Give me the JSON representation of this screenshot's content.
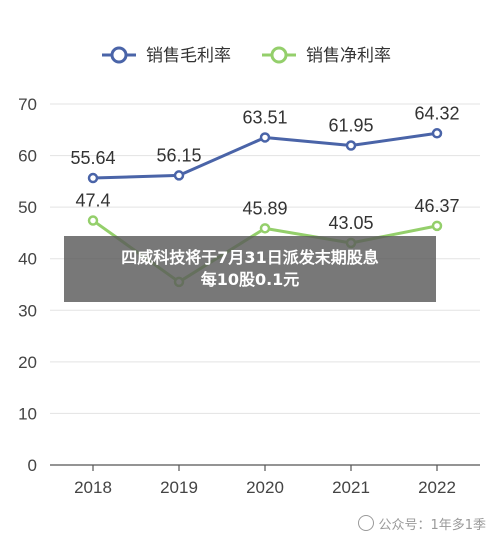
{
  "chart_data": {
    "type": "line",
    "categories": [
      "2018",
      "2019",
      "2020",
      "2021",
      "2022"
    ],
    "series": [
      {
        "name": "销售毛利率",
        "values": [
          55.64,
          56.15,
          63.51,
          61.95,
          64.32
        ],
        "color": "#4a64a8",
        "labels": [
          "55.64",
          "56.15",
          "63.51",
          "61.95",
          "64.32"
        ]
      },
      {
        "name": "销售净利率",
        "values": [
          47.4,
          35.5,
          45.89,
          43.05,
          46.37
        ],
        "color": "#94cf6b",
        "labels": [
          "47.4",
          "",
          "45.89",
          "43.05",
          "46.37"
        ]
      }
    ],
    "yticks": [
      0,
      10,
      20,
      30,
      40,
      50,
      60,
      70
    ],
    "ylim": [
      0,
      70
    ],
    "grid": true,
    "legend": "top-center"
  },
  "banner": {
    "line1": "四威科技将于7月31日派发末期股息",
    "line2": "每10股0.1元"
  },
  "watermark": {
    "text": "公众号：1年多1季"
  }
}
